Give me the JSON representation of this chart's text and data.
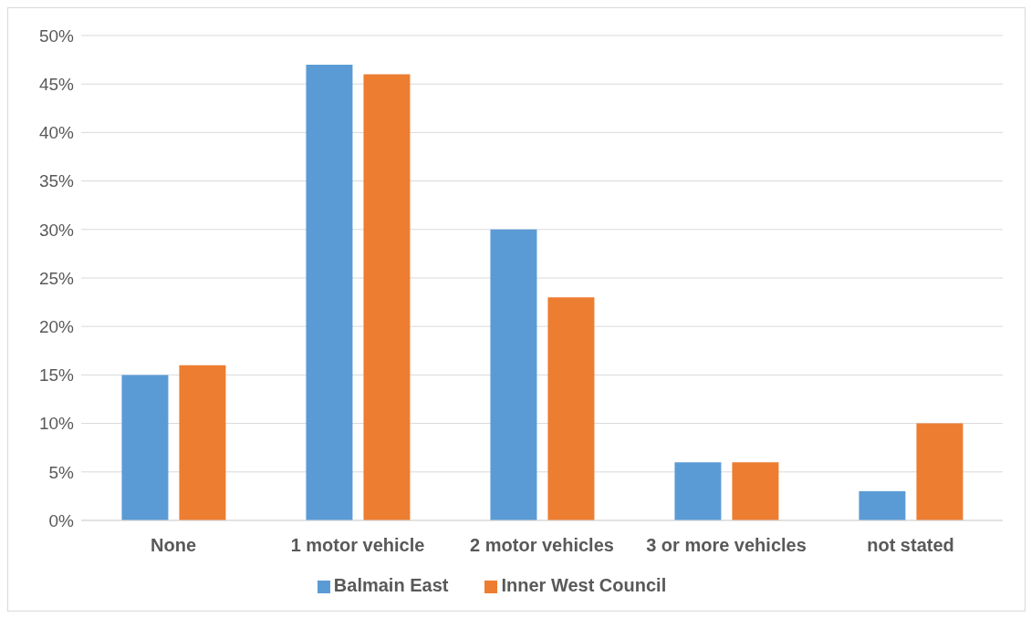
{
  "chart_data": {
    "type": "bar",
    "categories": [
      "None",
      "1 motor vehicle",
      "2 motor vehicles",
      "3 or more vehicles",
      "not stated"
    ],
    "series": [
      {
        "name": "Balmain East",
        "color": "#5b9bd5",
        "values": [
          15,
          47,
          30,
          6,
          3
        ]
      },
      {
        "name": "Inner West  Council",
        "color": "#ed7d31",
        "values": [
          16,
          46,
          23,
          6,
          10
        ]
      }
    ],
    "ylim": [
      0,
      50
    ],
    "yticks": [
      {
        "value": 0,
        "label": "0%"
      },
      {
        "value": 5,
        "label": "5%"
      },
      {
        "value": 10,
        "label": "10%"
      },
      {
        "value": 15,
        "label": "15%"
      },
      {
        "value": 20,
        "label": "20%"
      },
      {
        "value": 25,
        "label": "25%"
      },
      {
        "value": 30,
        "label": "30%"
      },
      {
        "value": 35,
        "label": "35%"
      },
      {
        "value": 40,
        "label": "40%"
      },
      {
        "value": 45,
        "label": "45%"
      },
      {
        "value": 50,
        "label": "50%"
      }
    ],
    "grid": "y",
    "legend": "bottom"
  }
}
